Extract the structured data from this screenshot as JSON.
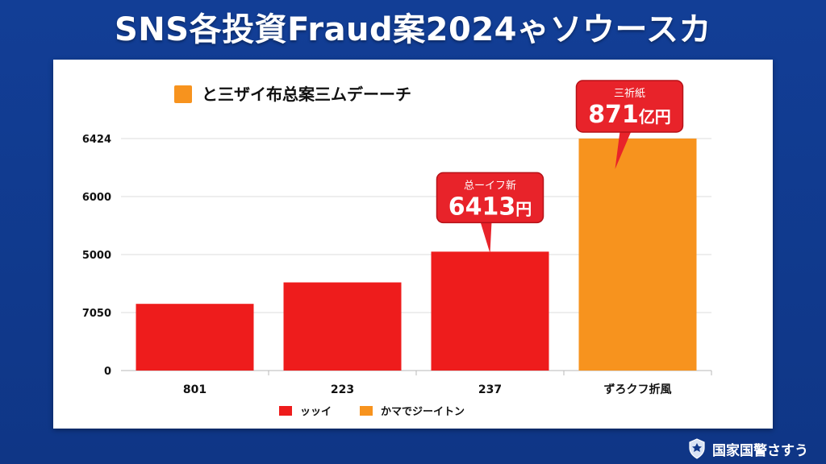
{
  "title": "SNS各投資Fraud案2024ゃソウースカ",
  "footer": {
    "org_name": "国家国警さすう",
    "icon": "police-badge-icon"
  },
  "colors": {
    "background": "#123a8c",
    "series_red": "#ee1c1c",
    "series_orange": "#f7931e",
    "callout_red": "#e8232a"
  },
  "chart_data": {
    "type": "bar",
    "title": "",
    "categories": [
      "801",
      "223",
      "237",
      "ずろクフ折風"
    ],
    "y_tick_labels": [
      "0",
      "7050",
      "5000",
      "6000",
      "6424"
    ],
    "y_tick_positions": [
      0,
      1,
      2,
      3,
      4
    ],
    "values": [
      1.15,
      1.52,
      2.05,
      4.0
    ],
    "bar_series": [
      "ッッイ",
      "ッッイ",
      "ッッイ",
      "かマでジーイトン"
    ],
    "ylim": [
      0,
      4
    ],
    "grid": true,
    "legend_top": {
      "label": "と三ザイ布总案三ムデーーチ",
      "color": "#f7931e"
    },
    "legend_bottom": [
      {
        "name": "ッッイ",
        "color": "#ee1c1c"
      },
      {
        "name": "かマでジーイトン",
        "color": "#f7931e"
      }
    ],
    "annotations": [
      {
        "bar_index": 2,
        "top": "总ーイフ新",
        "value": "6413",
        "unit": "円"
      },
      {
        "bar_index": 3,
        "top": "三祈紙",
        "value": "871",
        "unit": "亿円"
      }
    ]
  }
}
